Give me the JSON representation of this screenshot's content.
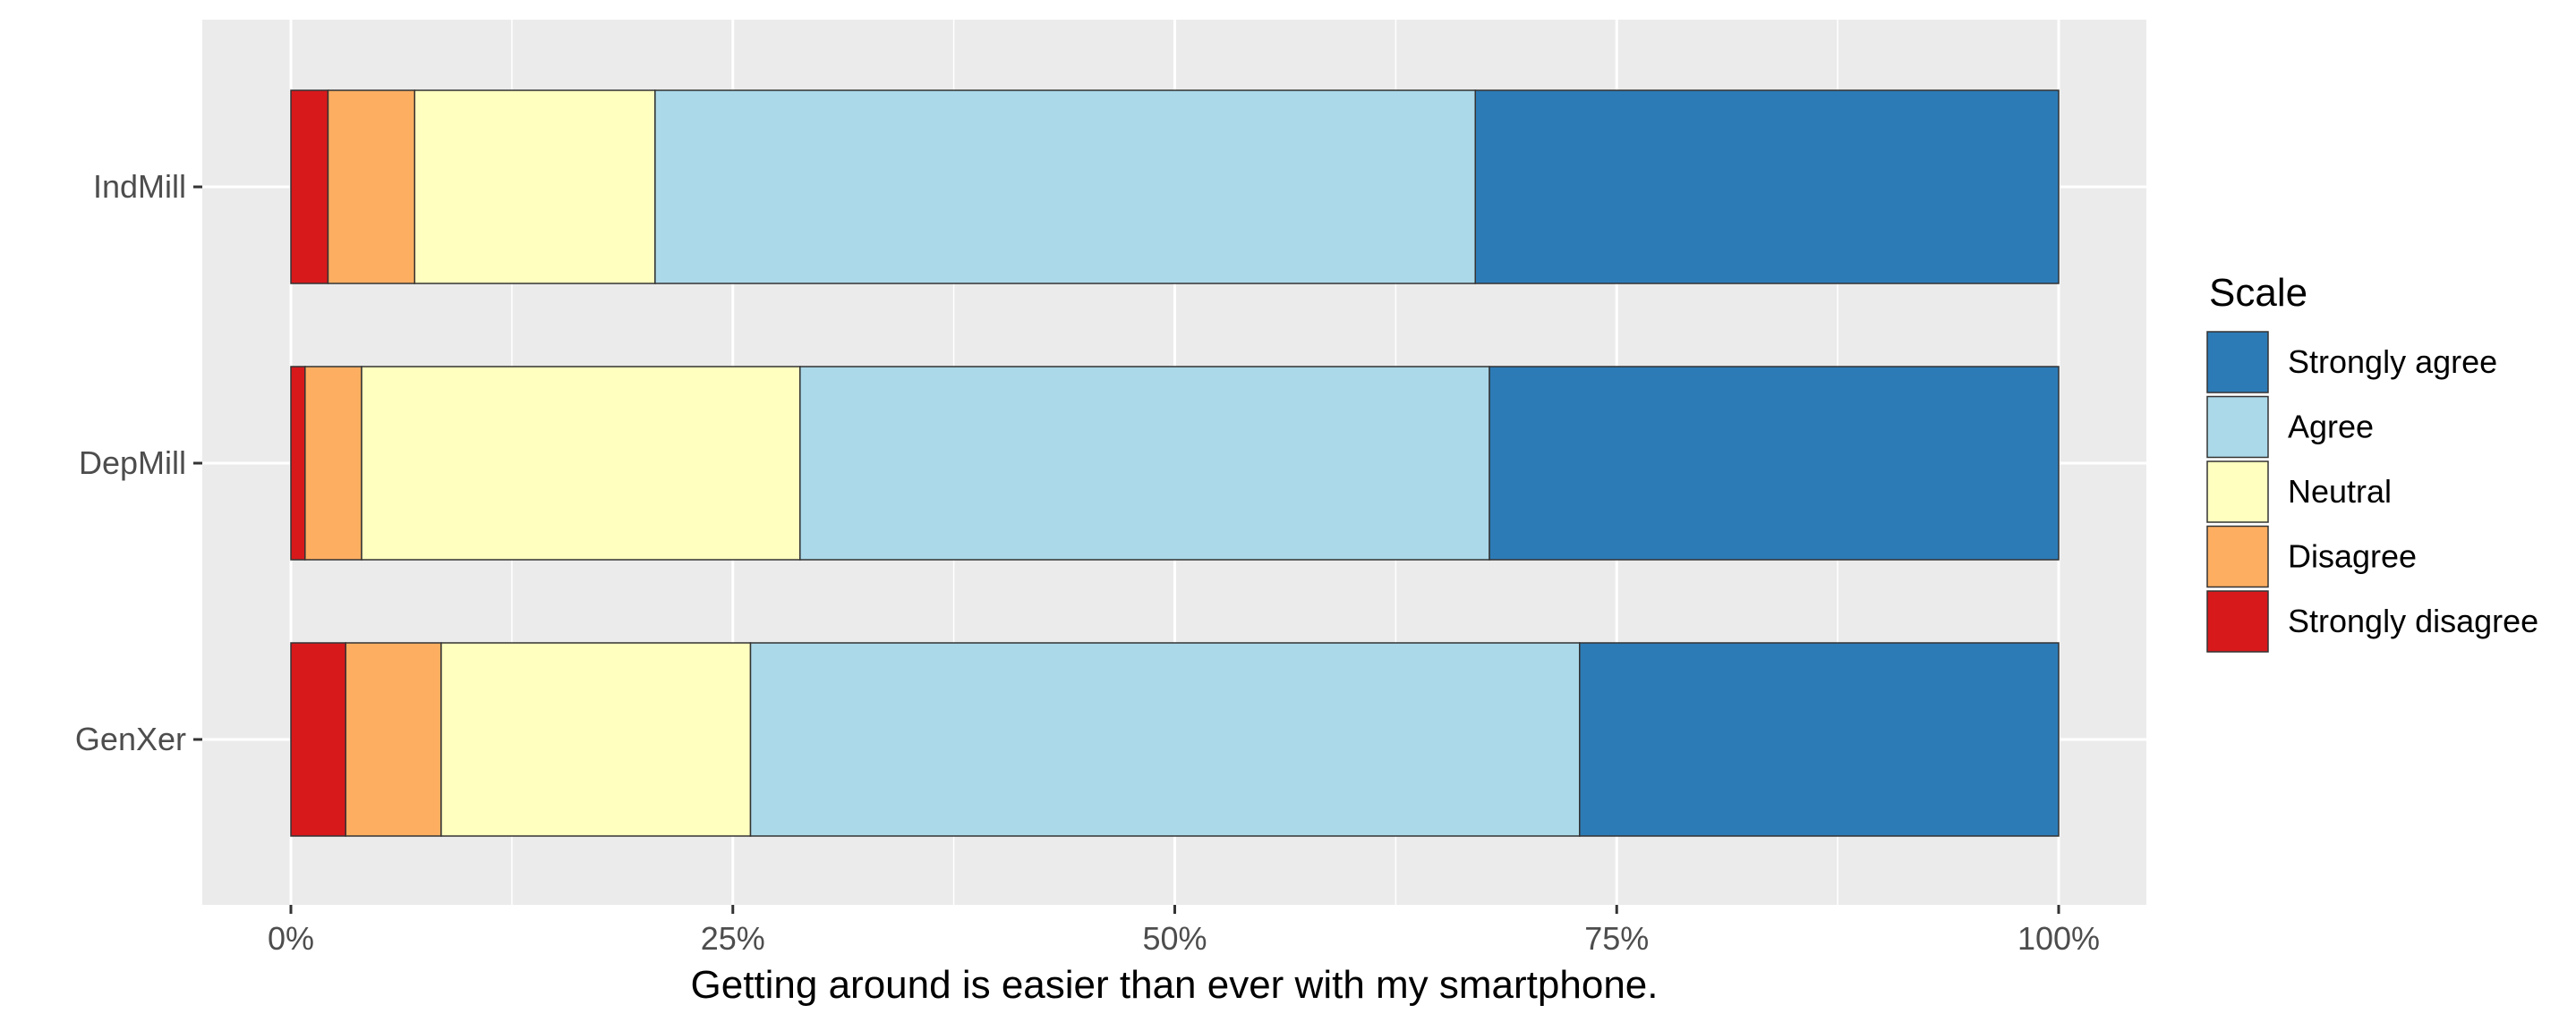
{
  "chart_data": {
    "type": "bar",
    "orientation": "horizontal",
    "stacked": true,
    "percent_stacked": true,
    "categories": [
      "IndMill",
      "DepMill",
      "GenXer"
    ],
    "series": [
      {
        "name": "Strongly disagree",
        "color": "#d7191c",
        "values": [
          2.1,
          0.8,
          3.1
        ]
      },
      {
        "name": "Disagree",
        "color": "#fdae61",
        "values": [
          4.9,
          3.2,
          5.4
        ]
      },
      {
        "name": "Neutral",
        "color": "#ffffbf",
        "values": [
          13.6,
          24.8,
          17.5
        ]
      },
      {
        "name": "Agree",
        "color": "#abd9e9",
        "values": [
          46.4,
          39.0,
          46.9
        ]
      },
      {
        "name": "Strongly agree",
        "color": "#2c7bb6",
        "values": [
          33.0,
          32.2,
          27.1
        ]
      }
    ],
    "xlabel": "Getting around is easier than ever with my smartphone.",
    "ylabel": "",
    "xlim": [
      0,
      100
    ],
    "x_ticks": [
      "0%",
      "25%",
      "50%",
      "75%",
      "100%"
    ],
    "grid": true,
    "legend": {
      "title": "Scale",
      "position": "right",
      "order": [
        "Strongly agree",
        "Agree",
        "Neutral",
        "Disagree",
        "Strongly disagree"
      ]
    }
  }
}
